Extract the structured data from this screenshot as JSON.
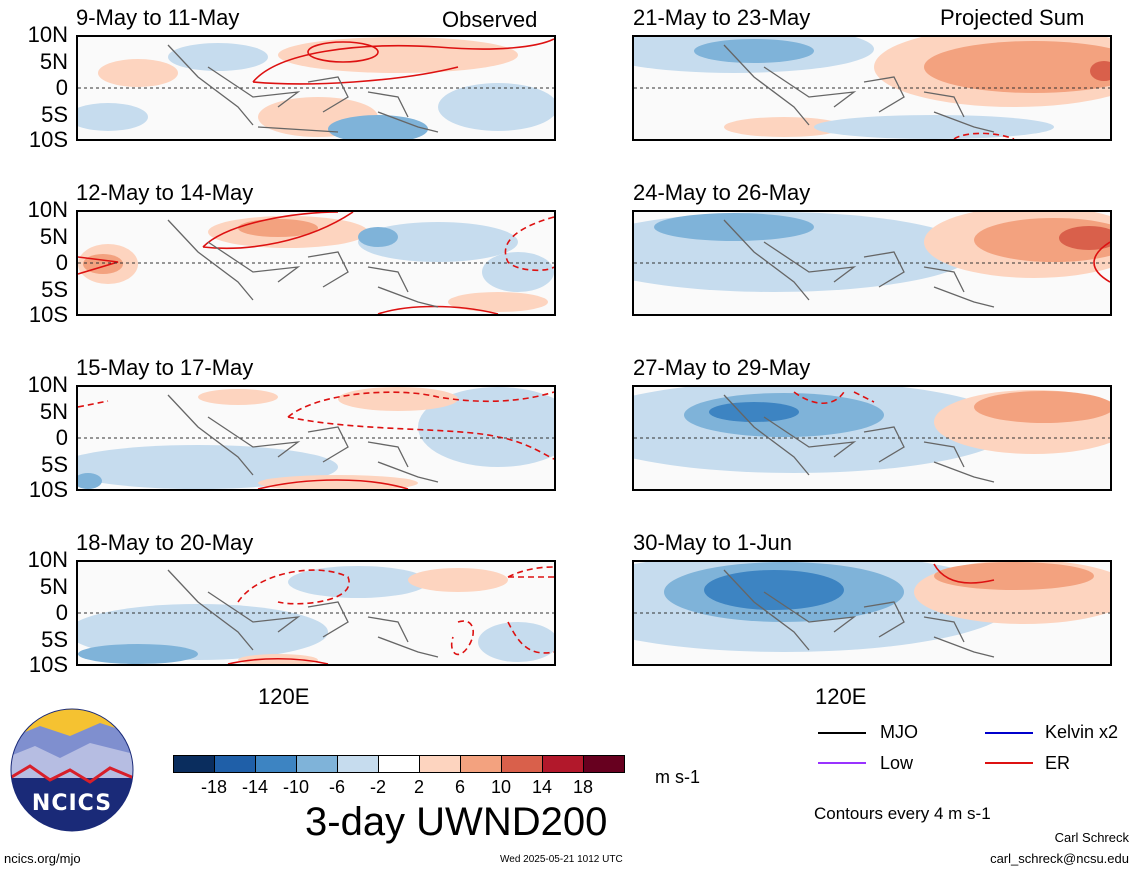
{
  "panels": [
    {
      "title": "9-May to 11-May",
      "label": "Observed"
    },
    {
      "title": "12-May to 14-May",
      "label": ""
    },
    {
      "title": "15-May to 17-May",
      "label": ""
    },
    {
      "title": "18-May to 20-May",
      "label": ""
    },
    {
      "title": "21-May to 23-May",
      "label": "Projected Sum"
    },
    {
      "title": "24-May to 26-May",
      "label": ""
    },
    {
      "title": "27-May to 29-May",
      "label": ""
    },
    {
      "title": "30-May to 1-Jun",
      "label": ""
    }
  ],
  "lat_labels": [
    "10N",
    "5N",
    "0",
    "5S",
    "10S"
  ],
  "lon_label": "120E",
  "colorbar": {
    "ticks": [
      "-18",
      "-14",
      "-10",
      "-6",
      "-2",
      "2",
      "6",
      "10",
      "14",
      "18"
    ],
    "colors": [
      "#0a2d5e",
      "#1f5fa8",
      "#3d84c2",
      "#7fb3d9",
      "#c6dcee",
      "#ffffff",
      "#fdd4bf",
      "#f3a27f",
      "#d9604b",
      "#b2182b",
      "#67001f"
    ],
    "units": "m s-1"
  },
  "main_title": "3-day UWND200",
  "legend": {
    "mjo": "MJO",
    "kelvin": "Kelvin x2",
    "low": "Low",
    "er": "ER",
    "colors": {
      "mjo": "#000000",
      "kelvin": "#0000cc",
      "low": "#9933ff",
      "er": "#dd1111"
    },
    "contours_note": "Contours every 4 m s-1"
  },
  "logo": {
    "text": "NCICS"
  },
  "footer": {
    "url": "ncics.org/mjo",
    "timestamp": "Wed 2025-05-21 1012 UTC",
    "author": "Carl Schreck",
    "email": "carl_schreck@ncsu.edu"
  }
}
